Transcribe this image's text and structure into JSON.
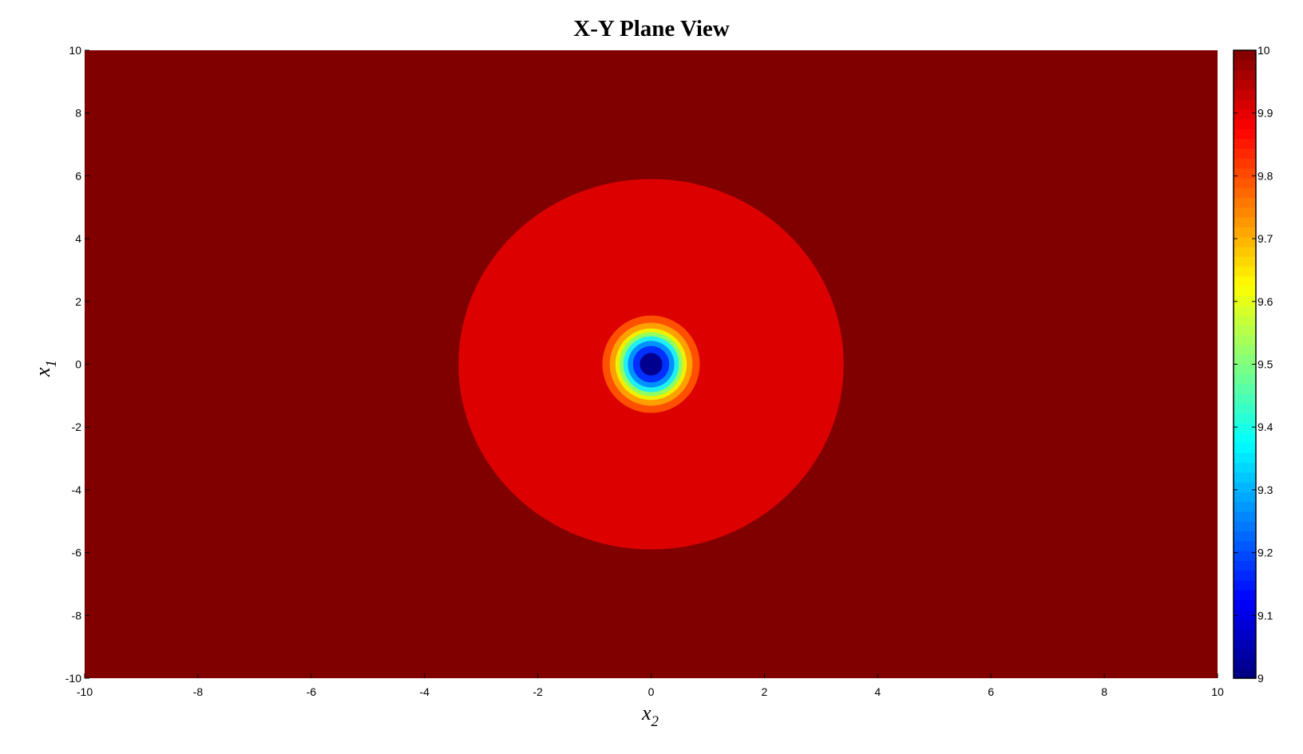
{
  "chart_data": {
    "type": "heatmap",
    "title": "X-Y Plane View",
    "xlabel": "x",
    "xlabel_sub": "2",
    "ylabel": "x",
    "ylabel_sub": "1",
    "xlim": [
      -10,
      10
    ],
    "ylim": [
      -10,
      10
    ],
    "xticks": [
      "-10",
      "-8",
      "-6",
      "-4",
      "-2",
      "0",
      "2",
      "4",
      "6",
      "8",
      "10"
    ],
    "yticks": [
      "-10",
      "-8",
      "-6",
      "-4",
      "-2",
      "0",
      "2",
      "4",
      "6",
      "8",
      "10"
    ],
    "grid": false,
    "colormap": "jet",
    "colorbar": {
      "range": [
        9,
        10
      ],
      "ticks": [
        "9",
        "9.1",
        "9.2",
        "9.3",
        "9.4",
        "9.5",
        "9.6",
        "9.7",
        "9.8",
        "9.9",
        "10"
      ],
      "placement": "right"
    },
    "background_value": 10,
    "center": [
      0,
      0
    ],
    "contours": [
      {
        "value": 9.95,
        "radius_x2": 3.4,
        "radius_x1": 5.9,
        "color": "#dd0000"
      },
      {
        "value": 9.8,
        "radius_x2": 0.86,
        "radius_x1": 1.55,
        "color": "#ff5000"
      },
      {
        "value": 9.7,
        "radius_x2": 0.73,
        "radius_x1": 1.32,
        "color": "#ffa000"
      },
      {
        "value": 9.6,
        "radius_x2": 0.63,
        "radius_x1": 1.14,
        "color": "#f0f000"
      },
      {
        "value": 9.5,
        "radius_x2": 0.56,
        "radius_x1": 1.02,
        "color": "#90ff60"
      },
      {
        "value": 9.4,
        "radius_x2": 0.49,
        "radius_x1": 0.89,
        "color": "#20f0f0"
      },
      {
        "value": 9.3,
        "radius_x2": 0.41,
        "radius_x1": 0.74,
        "color": "#0090ff"
      },
      {
        "value": 9.2,
        "radius_x2": 0.32,
        "radius_x1": 0.58,
        "color": "#0030ff"
      },
      {
        "value": 9.0,
        "radius_x2": 0.2,
        "radius_x1": 0.36,
        "color": "#000090"
      }
    ],
    "background_color": "#800000"
  }
}
